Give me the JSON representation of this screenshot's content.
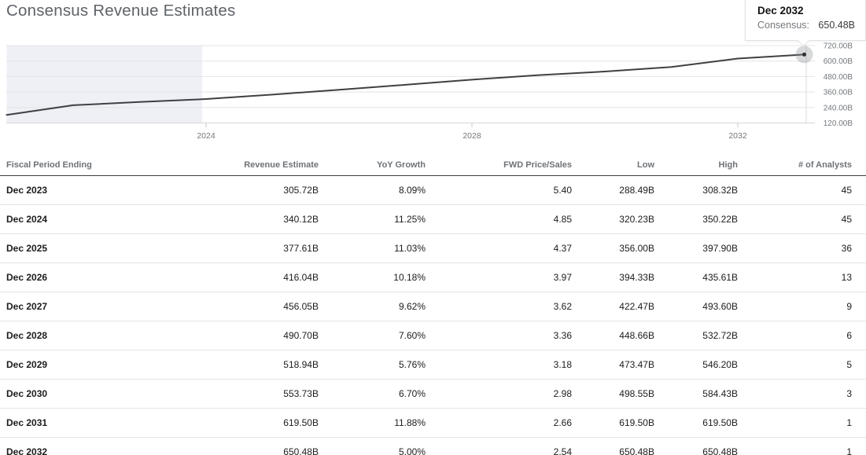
{
  "title": "Consensus Revenue Estimates",
  "tooltip": {
    "title": "Dec 2032",
    "label": "Consensus:",
    "value": "650.48B"
  },
  "chart_data": {
    "type": "line",
    "title": "Consensus Revenue Estimates",
    "unit": "B",
    "grid": "horizontal",
    "series": [
      {
        "name": "Consensus Revenue",
        "points": [
          {
            "period": "Dec 2020",
            "value": 182.5,
            "kind": "actual"
          },
          {
            "period": "Dec 2021",
            "value": 257.6,
            "kind": "actual"
          },
          {
            "period": "Dec 2022",
            "value": 282.8,
            "kind": "actual"
          },
          {
            "period": "Dec 2023",
            "value": 305.72,
            "kind": "estimate"
          },
          {
            "period": "Dec 2024",
            "value": 340.12,
            "kind": "estimate"
          },
          {
            "period": "Dec 2025",
            "value": 377.61,
            "kind": "estimate"
          },
          {
            "period": "Dec 2026",
            "value": 416.04,
            "kind": "estimate"
          },
          {
            "period": "Dec 2027",
            "value": 456.05,
            "kind": "estimate"
          },
          {
            "period": "Dec 2028",
            "value": 490.7,
            "kind": "estimate"
          },
          {
            "period": "Dec 2029",
            "value": 518.94,
            "kind": "estimate"
          },
          {
            "period": "Dec 2030",
            "value": 553.73,
            "kind": "estimate"
          },
          {
            "period": "Dec 2031",
            "value": 619.5,
            "kind": "estimate"
          },
          {
            "period": "Dec 2032",
            "value": 650.48,
            "kind": "estimate"
          }
        ]
      }
    ],
    "x_axis": {
      "ticks": [
        {
          "year": 2024,
          "label": "2024"
        },
        {
          "year": 2028,
          "label": "2028"
        },
        {
          "year": 2032,
          "label": "2032"
        }
      ]
    },
    "y_axis": {
      "position": "right",
      "ticks": [
        {
          "value": 720,
          "label": "720.00B"
        },
        {
          "value": 600,
          "label": "600.00B"
        },
        {
          "value": 480,
          "label": "480.00B"
        },
        {
          "value": 360,
          "label": "360.00B"
        },
        {
          "value": 240,
          "label": "240.00B"
        },
        {
          "value": 120,
          "label": "120.00B"
        }
      ]
    },
    "ylim": [
      120,
      720
    ],
    "shaded_region_years": [
      2021.0,
      2023.94
    ],
    "highlight_point": {
      "period": "Dec 2032",
      "value": 650.48
    },
    "colors": {
      "line": "#3f4043",
      "shaded_region": "#eef0f5",
      "gridline": "#e4e4e4",
      "axis_text": "#74787c"
    }
  },
  "table": {
    "columns": [
      {
        "label": "Fiscal Period Ending",
        "align": "left"
      },
      {
        "label": "Revenue Estimate",
        "align": "right"
      },
      {
        "label": "YoY Growth",
        "align": "right"
      },
      {
        "label": "FWD Price/Sales",
        "align": "right"
      },
      {
        "label": "Low",
        "align": "right"
      },
      {
        "label": "High",
        "align": "right"
      },
      {
        "label": "# of Analysts",
        "align": "right"
      }
    ],
    "rows": [
      {
        "period": "Dec 2023",
        "revenue": "305.72B",
        "yoy": "8.09%",
        "fwd_ps": "5.40",
        "low": "288.49B",
        "high": "308.32B",
        "analysts": "45"
      },
      {
        "period": "Dec 2024",
        "revenue": "340.12B",
        "yoy": "11.25%",
        "fwd_ps": "4.85",
        "low": "320.23B",
        "high": "350.22B",
        "analysts": "45"
      },
      {
        "period": "Dec 2025",
        "revenue": "377.61B",
        "yoy": "11.03%",
        "fwd_ps": "4.37",
        "low": "356.00B",
        "high": "397.90B",
        "analysts": "36"
      },
      {
        "period": "Dec 2026",
        "revenue": "416.04B",
        "yoy": "10.18%",
        "fwd_ps": "3.97",
        "low": "394.33B",
        "high": "435.61B",
        "analysts": "13"
      },
      {
        "period": "Dec 2027",
        "revenue": "456.05B",
        "yoy": "9.62%",
        "fwd_ps": "3.62",
        "low": "422.47B",
        "high": "493.60B",
        "analysts": "9"
      },
      {
        "period": "Dec 2028",
        "revenue": "490.70B",
        "yoy": "7.60%",
        "fwd_ps": "3.36",
        "low": "448.66B",
        "high": "532.72B",
        "analysts": "6"
      },
      {
        "period": "Dec 2029",
        "revenue": "518.94B",
        "yoy": "5.76%",
        "fwd_ps": "3.18",
        "low": "473.47B",
        "high": "546.20B",
        "analysts": "5"
      },
      {
        "period": "Dec 2030",
        "revenue": "553.73B",
        "yoy": "6.70%",
        "fwd_ps": "2.98",
        "low": "498.55B",
        "high": "584.43B",
        "analysts": "3"
      },
      {
        "period": "Dec 2031",
        "revenue": "619.50B",
        "yoy": "11.88%",
        "fwd_ps": "2.66",
        "low": "619.50B",
        "high": "619.50B",
        "analysts": "1"
      },
      {
        "period": "Dec 2032",
        "revenue": "650.48B",
        "yoy": "5.00%",
        "fwd_ps": "2.54",
        "low": "650.48B",
        "high": "650.48B",
        "analysts": "1"
      }
    ]
  }
}
